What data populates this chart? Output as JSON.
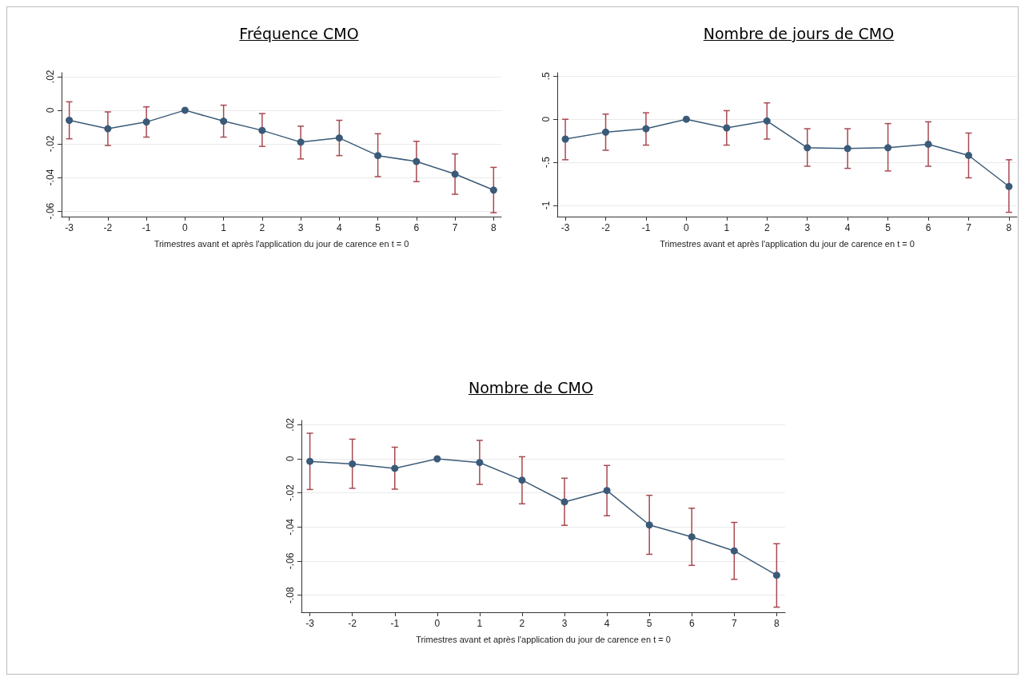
{
  "chart_data": [
    {
      "type": "line",
      "title": "Fréquence CMO",
      "xlabel": "Trimestres avant et après l'application du jour de carence en t = 0",
      "x": [
        -3,
        -2,
        -1,
        0,
        1,
        2,
        3,
        4,
        5,
        6,
        7,
        8
      ],
      "series": [
        {
          "color": "#3a5a78",
          "values": [
            -0.006,
            -0.011,
            -0.007,
            0,
            -0.0065,
            -0.012,
            -0.019,
            -0.0165,
            -0.027,
            -0.0305,
            -0.038,
            -0.0475
          ],
          "errors": [
            [
              -0.017,
              0.005
            ],
            [
              -0.021,
              -0.001
            ],
            [
              -0.016,
              0.002
            ],
            null,
            [
              -0.016,
              0.003
            ],
            [
              -0.0215,
              -0.002
            ],
            [
              -0.029,
              -0.0095
            ],
            [
              -0.027,
              -0.006
            ],
            [
              -0.0395,
              -0.014
            ],
            [
              -0.0425,
              -0.0185
            ],
            [
              -0.05,
              -0.026
            ],
            [
              -0.061,
              -0.034
            ]
          ]
        }
      ],
      "xlim": [
        -3.2,
        8.2
      ],
      "xticks": [
        -3,
        -2,
        -1,
        0,
        1,
        2,
        3,
        4,
        5,
        6,
        7,
        8
      ],
      "ylim": [
        -0.0633,
        0.0223
      ],
      "yticks": [
        {
          "value": 0.02,
          "label": ".02"
        },
        {
          "value": 0,
          "label": "0"
        },
        {
          "value": -0.02,
          "label": "-.02"
        },
        {
          "value": -0.04,
          "label": "-.04"
        },
        {
          "value": -0.06,
          "label": "-.06"
        }
      ],
      "grid": "y",
      "marker": "circle",
      "line_style": "solid"
    },
    {
      "type": "line",
      "title": "Nombre de jours de CMO",
      "xlabel": "Trimestres avant et après l'application du jour de carence en t = 0",
      "x": [
        -3,
        -2,
        -1,
        0,
        1,
        2,
        3,
        4,
        5,
        6,
        7,
        8
      ],
      "series": [
        {
          "color": "#3a5a78",
          "values": [
            -0.23,
            -0.15,
            -0.11,
            0,
            -0.1,
            -0.02,
            -0.33,
            -0.34,
            -0.33,
            -0.29,
            -0.42,
            -0.78
          ],
          "errors": [
            [
              -0.47,
              0.0
            ],
            [
              -0.36,
              0.06
            ],
            [
              -0.3,
              0.075
            ],
            null,
            [
              -0.3,
              0.1
            ],
            [
              -0.23,
              0.19
            ],
            [
              -0.545,
              -0.11
            ],
            [
              -0.57,
              -0.11
            ],
            [
              -0.6,
              -0.05
            ],
            [
              -0.545,
              -0.03
            ],
            [
              -0.68,
              -0.16
            ],
            [
              -1.08,
              -0.47
            ]
          ]
        }
      ],
      "xlim": [
        -3.2,
        8.2
      ],
      "xticks": [
        -3,
        -2,
        -1,
        0,
        1,
        2,
        3,
        4,
        5,
        6,
        7,
        8
      ],
      "ylim": [
        -1.13,
        0.54
      ],
      "yticks": [
        {
          "value": 0.5,
          "label": ".5"
        },
        {
          "value": 0,
          "label": "0"
        },
        {
          "value": -0.5,
          "label": "-.5"
        },
        {
          "value": -1,
          "label": "-1"
        }
      ],
      "grid": "y",
      "marker": "circle",
      "line_style": "solid"
    },
    {
      "type": "line",
      "title": "Nombre de CMO",
      "xlabel": "Trimestres avant et après l'application du jour de carence en t = 0",
      "x": [
        -3,
        -2,
        -1,
        0,
        1,
        2,
        3,
        4,
        5,
        6,
        7,
        8
      ],
      "series": [
        {
          "color": "#3a5a78",
          "values": [
            -0.0015,
            -0.003,
            -0.0056,
            0,
            -0.0022,
            -0.0125,
            -0.0253,
            -0.0186,
            -0.0388,
            -0.0458,
            -0.054,
            -0.0683
          ],
          "errors": [
            [
              -0.018,
              0.015
            ],
            [
              -0.0173,
              0.0115
            ],
            [
              -0.0178,
              0.0068
            ],
            null,
            [
              -0.015,
              0.0108
            ],
            [
              -0.0264,
              0.0012
            ],
            [
              -0.039,
              -0.0114
            ],
            [
              -0.0334,
              -0.0039
            ],
            [
              -0.056,
              -0.0214
            ],
            [
              -0.0625,
              -0.029
            ],
            [
              -0.0707,
              -0.0373
            ],
            [
              -0.087,
              -0.0498
            ]
          ]
        }
      ],
      "xlim": [
        -3.2,
        8.2
      ],
      "xticks": [
        -3,
        -2,
        -1,
        0,
        1,
        2,
        3,
        4,
        5,
        6,
        7,
        8
      ],
      "ylim": [
        -0.09,
        0.0225
      ],
      "yticks": [
        {
          "value": 0.02,
          "label": ".02"
        },
        {
          "value": 0,
          "label": "0"
        },
        {
          "value": -0.02,
          "label": "-.02"
        },
        {
          "value": -0.04,
          "label": "-.04"
        },
        {
          "value": -0.06,
          "label": "-.06"
        },
        {
          "value": -0.08,
          "label": "-.08"
        }
      ],
      "grid": "y",
      "marker": "circle",
      "line_style": "solid"
    }
  ]
}
